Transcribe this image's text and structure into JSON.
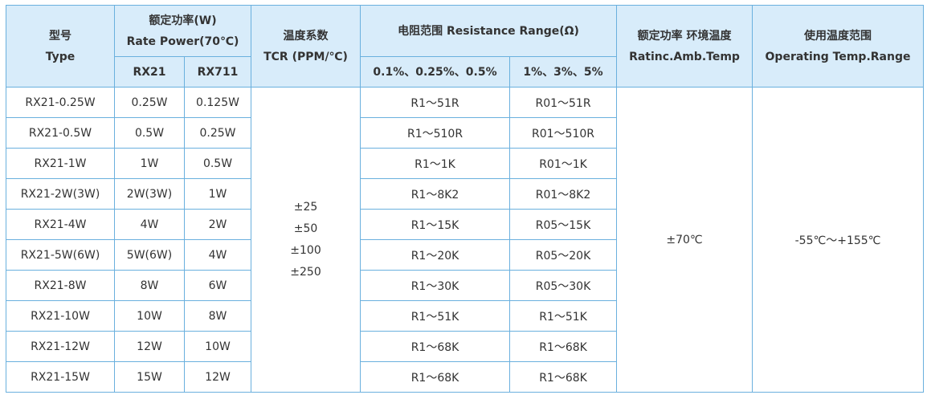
{
  "header": {
    "type_cn": "型号",
    "type_en": "Type",
    "power_cn": "额定功率(W)",
    "power_en": "Rate Power(70℃)",
    "power_sub": [
      "RX21",
      "RX711"
    ],
    "tcr_cn": "温度系数",
    "tcr_en": "TCR (PPM/℃)",
    "range_title": "电阻范围 Resistance Range(Ω)",
    "range_sub": [
      "0.1%、0.25%、0.5%",
      "1%、3%、5%"
    ],
    "amb_cn": "额定功率 环境温度",
    "amb_en": "Ratinc.Amb.Temp",
    "op_cn": "使用温度范围",
    "op_en": "Operating Temp.Range"
  },
  "rows": [
    {
      "type": "RX21-0.25W",
      "p21": "0.25W",
      "p711": "0.125W",
      "r1": "R1～51R",
      "r2": "R01～51R"
    },
    {
      "type": "RX21-0.5W",
      "p21": "0.5W",
      "p711": "0.25W",
      "r1": "R1～510R",
      "r2": "R01～510R"
    },
    {
      "type": "RX21-1W",
      "p21": "1W",
      "p711": "0.5W",
      "r1": "R1～1K",
      "r2": "R01～1K"
    },
    {
      "type": "RX21-2W(3W)",
      "p21": "2W(3W)",
      "p711": "1W",
      "r1": "R1～8K2",
      "r2": "R01～8K2"
    },
    {
      "type": "RX21-4W",
      "p21": "4W",
      "p711": "2W",
      "r1": "R1～15K",
      "r2": "R05～15K"
    },
    {
      "type": "RX21-5W(6W)",
      "p21": "5W(6W)",
      "p711": "4W",
      "r1": "R1～20K",
      "r2": "R05～20K"
    },
    {
      "type": "RX21-8W",
      "p21": "8W",
      "p711": "6W",
      "r1": "R1～30K",
      "r2": "R05～30K"
    },
    {
      "type": "RX21-10W",
      "p21": "10W",
      "p711": "8W",
      "r1": "R1～51K",
      "r2": "R1～51K"
    },
    {
      "type": "RX21-12W",
      "p21": "12W",
      "p711": "10W",
      "r1": "R1～68K",
      "r2": "R1～68K"
    },
    {
      "type": "RX21-15W",
      "p21": "15W",
      "p711": "12W",
      "r1": "R1～68K",
      "r2": "R1～68K"
    }
  ],
  "tcr_values": [
    "±25",
    "±50",
    "±100",
    "±250"
  ],
  "amb_temp": "±70℃",
  "op_range": "-55℃～+155℃"
}
